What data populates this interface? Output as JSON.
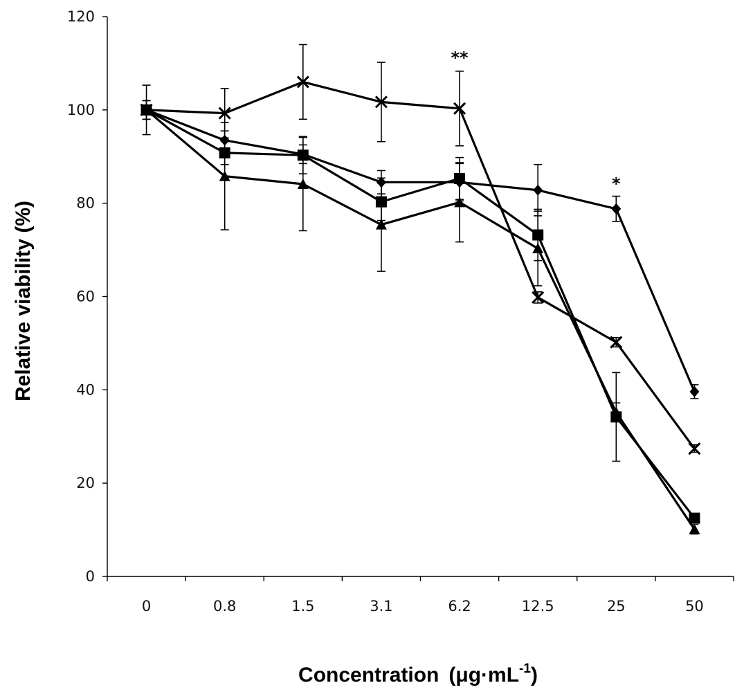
{
  "chart_data": {
    "type": "line",
    "title": "",
    "xlabel": "Concentration",
    "xlabel_unit_prefix": "(",
    "xlabel_unit_main": "μg·mL",
    "xlabel_unit_sup": "-1",
    "xlabel_unit_suffix": ")",
    "ylabel": "Relative viability (%)",
    "ylim": [
      0,
      120
    ],
    "yticks": [
      "0",
      "20",
      "40",
      "60",
      "80",
      "100",
      "120"
    ],
    "categories": [
      "0",
      "0.8",
      "1.5",
      "3.1",
      "6.2",
      "12.5",
      "25",
      "50"
    ],
    "grid": false,
    "legend": "none",
    "series": [
      {
        "name": "diamond",
        "marker": "diamond",
        "values": [
          100,
          93.5,
          90.5,
          84.5,
          84.5,
          82.8,
          78.8,
          39.6
        ],
        "errors": [
          2,
          2,
          2,
          2.5,
          4,
          5.5,
          2.7,
          1.5
        ]
      },
      {
        "name": "square",
        "marker": "square",
        "values": [
          100,
          90.8,
          90.3,
          80.3,
          85.3,
          73.2,
          34.2,
          12.5
        ],
        "errors": [
          2,
          2.5,
          4,
          4,
          4.5,
          5.5,
          9.5,
          1
        ]
      },
      {
        "name": "triangle",
        "marker": "triangle",
        "values": [
          100,
          85.8,
          84.1,
          75.4,
          80.2,
          70.3,
          35.2,
          10.1
        ],
        "errors": [
          2,
          11.5,
          10,
          10,
          8.5,
          8,
          2,
          1
        ]
      },
      {
        "name": "cross",
        "marker": "cross",
        "values": [
          100,
          99.3,
          106,
          101.7,
          100.3,
          59.8,
          50.2,
          27.4
        ],
        "errors": [
          5.3,
          5.3,
          8,
          8.5,
          8,
          1.2,
          1,
          0.8
        ]
      }
    ],
    "annotations": [
      {
        "text": "**",
        "category": "6.2",
        "y": 111.5
      },
      {
        "text": "*",
        "category": "25",
        "y": 84.5
      }
    ]
  }
}
